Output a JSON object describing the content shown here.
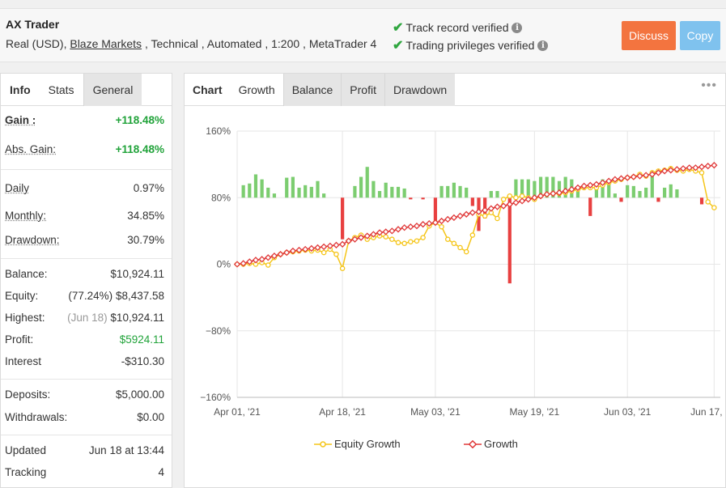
{
  "header": {
    "title": "AX Trader",
    "account_type": "Real (USD),",
    "broker": "Blaze Markets",
    "details": " , Technical , Automated , 1:200 , MetaTrader 4",
    "verify1": "Track record verified",
    "verify2": "Trading privileges verified",
    "discuss_label": "Discuss",
    "copy_label": "Copy",
    "colors": {
      "discuss": "#f3743f",
      "copy": "#7fc2ee",
      "check": "#2fa63f"
    }
  },
  "left_tabs": [
    "Info",
    "Stats",
    "General"
  ],
  "stats": {
    "gain_label": "Gain :",
    "gain_value": "+118.48%",
    "abs_gain_label": "Abs. Gain:",
    "abs_gain_value": "+118.48%",
    "daily_label": "Daily",
    "daily_value": "0.97%",
    "monthly_label": "Monthly:",
    "monthly_value": "34.85%",
    "drawdown_label": "Drawdown:",
    "drawdown_value": "30.79%",
    "balance_label": "Balance:",
    "balance_value": "$10,924.11",
    "equity_label": "Equity:",
    "equity_pct": "(77.24%)",
    "equity_value": "$8,437.58",
    "highest_label": "Highest:",
    "highest_date": "(Jun 18)",
    "highest_value": "$10,924.11",
    "profit_label": "Profit:",
    "profit_value": "$5924.11",
    "interest_label": "Interest",
    "interest_value": "-$310.30",
    "deposits_label": "Deposits:",
    "deposits_value": "$5,000.00",
    "withdrawals_label": "Withdrawals:",
    "withdrawals_value": "$0.00",
    "updated_label": "Updated",
    "updated_value": "Jun 18 at 13:44",
    "tracking_label": "Tracking",
    "tracking_value": "4"
  },
  "right_tabs": [
    "Chart",
    "Growth",
    "Balance",
    "Profit",
    "Drawdown"
  ],
  "more_icon": "ellipsis-icon",
  "chart_data": {
    "type": "line",
    "ylim": [
      -160,
      160
    ],
    "yticks": [
      "160%",
      "80%",
      "0%",
      "−80%",
      "−160%"
    ],
    "ytick_values": [
      160,
      80,
      0,
      -80,
      -160
    ],
    "xticks": [
      "Apr 01, '21",
      "Apr 18, '21",
      "May 03, '21",
      "May 19, '21",
      "Jun 03, '21",
      "Jun 17, '21"
    ],
    "xtick_days": [
      0,
      17,
      32,
      48,
      63,
      77
    ],
    "x_max_days": 78,
    "grid": true,
    "legend_position": "bottom",
    "series": [
      {
        "name": "Equity Growth",
        "color": "#f5c518",
        "points": [
          [
            0,
            0
          ],
          [
            1,
            0
          ],
          [
            2,
            1
          ],
          [
            3,
            0
          ],
          [
            4,
            2
          ],
          [
            5,
            -1
          ],
          [
            6,
            8
          ],
          [
            7,
            12
          ],
          [
            8,
            14
          ],
          [
            9,
            15
          ],
          [
            10,
            16
          ],
          [
            11,
            17
          ],
          [
            12,
            16
          ],
          [
            13,
            17
          ],
          [
            14,
            14
          ],
          [
            15,
            18
          ],
          [
            16,
            12
          ],
          [
            17,
            -5
          ],
          [
            18,
            28
          ],
          [
            19,
            32
          ],
          [
            20,
            35
          ],
          [
            21,
            30
          ],
          [
            22,
            32
          ],
          [
            23,
            34
          ],
          [
            24,
            33
          ],
          [
            25,
            30
          ],
          [
            26,
            26
          ],
          [
            27,
            25
          ],
          [
            28,
            27
          ],
          [
            29,
            28
          ],
          [
            30,
            32
          ],
          [
            31,
            46
          ],
          [
            32,
            50
          ],
          [
            33,
            45
          ],
          [
            34,
            30
          ],
          [
            35,
            25
          ],
          [
            36,
            20
          ],
          [
            37,
            15
          ],
          [
            38,
            35
          ],
          [
            39,
            60
          ],
          [
            40,
            58
          ],
          [
            41,
            62
          ],
          [
            42,
            55
          ],
          [
            43,
            78
          ],
          [
            44,
            82
          ],
          [
            45,
            80
          ],
          [
            46,
            82
          ],
          [
            47,
            80
          ],
          [
            48,
            78
          ],
          [
            49,
            82
          ],
          [
            50,
            84
          ],
          [
            51,
            85
          ],
          [
            52,
            85
          ],
          [
            53,
            86
          ],
          [
            54,
            88
          ],
          [
            55,
            90
          ],
          [
            56,
            92
          ],
          [
            57,
            92
          ],
          [
            58,
            92
          ],
          [
            59,
            95
          ],
          [
            60,
            98
          ],
          [
            61,
            100
          ],
          [
            62,
            102
          ],
          [
            63,
            104
          ],
          [
            64,
            105
          ],
          [
            65,
            108
          ],
          [
            66,
            106
          ],
          [
            67,
            110
          ],
          [
            68,
            112
          ],
          [
            69,
            113
          ],
          [
            70,
            115
          ],
          [
            71,
            113
          ],
          [
            72,
            112
          ],
          [
            73,
            114
          ],
          [
            74,
            112
          ],
          [
            75,
            110
          ],
          [
            76,
            75
          ],
          [
            77,
            68
          ]
        ]
      },
      {
        "name": "Growth",
        "color": "#e03a3a",
        "points": [
          [
            0,
            0
          ],
          [
            1,
            1
          ],
          [
            2,
            3
          ],
          [
            3,
            5
          ],
          [
            4,
            6
          ],
          [
            5,
            8
          ],
          [
            6,
            10
          ],
          [
            7,
            12
          ],
          [
            8,
            14
          ],
          [
            9,
            16
          ],
          [
            10,
            17
          ],
          [
            11,
            18
          ],
          [
            12,
            19
          ],
          [
            13,
            20
          ],
          [
            14,
            21
          ],
          [
            15,
            22
          ],
          [
            16,
            23
          ],
          [
            17,
            24
          ],
          [
            18,
            28
          ],
          [
            19,
            30
          ],
          [
            20,
            32
          ],
          [
            21,
            34
          ],
          [
            22,
            36
          ],
          [
            23,
            38
          ],
          [
            24,
            39
          ],
          [
            25,
            40
          ],
          [
            26,
            42
          ],
          [
            27,
            44
          ],
          [
            28,
            45
          ],
          [
            29,
            46
          ],
          [
            30,
            48
          ],
          [
            31,
            49
          ],
          [
            32,
            50
          ],
          [
            33,
            52
          ],
          [
            34,
            54
          ],
          [
            35,
            56
          ],
          [
            36,
            58
          ],
          [
            37,
            60
          ],
          [
            38,
            62
          ],
          [
            39,
            63
          ],
          [
            40,
            65
          ],
          [
            41,
            67
          ],
          [
            42,
            69
          ],
          [
            43,
            70
          ],
          [
            44,
            72
          ],
          [
            45,
            74
          ],
          [
            46,
            76
          ],
          [
            47,
            78
          ],
          [
            48,
            80
          ],
          [
            49,
            82
          ],
          [
            50,
            84
          ],
          [
            51,
            85
          ],
          [
            52,
            86
          ],
          [
            53,
            88
          ],
          [
            54,
            90
          ],
          [
            55,
            92
          ],
          [
            56,
            94
          ],
          [
            57,
            95
          ],
          [
            58,
            96
          ],
          [
            59,
            98
          ],
          [
            60,
            100
          ],
          [
            61,
            102
          ],
          [
            62,
            103
          ],
          [
            63,
            104
          ],
          [
            64,
            105
          ],
          [
            65,
            106
          ],
          [
            66,
            107
          ],
          [
            67,
            108
          ],
          [
            68,
            110
          ],
          [
            69,
            112
          ],
          [
            70,
            113
          ],
          [
            71,
            114
          ],
          [
            72,
            115
          ],
          [
            73,
            116
          ],
          [
            74,
            116
          ],
          [
            75,
            117
          ],
          [
            76,
            118
          ],
          [
            77,
            119
          ]
        ]
      }
    ],
    "bars": {
      "color_pos": "#7ccd70",
      "color_neg": "#e84040",
      "points": [
        [
          1,
          15
        ],
        [
          2,
          17
        ],
        [
          3,
          28
        ],
        [
          4,
          22
        ],
        [
          5,
          12
        ],
        [
          6,
          5
        ],
        [
          8,
          24
        ],
        [
          9,
          25
        ],
        [
          10,
          12
        ],
        [
          11,
          15
        ],
        [
          12,
          13
        ],
        [
          13,
          20
        ],
        [
          14,
          5
        ],
        [
          17,
          -50
        ],
        [
          19,
          14
        ],
        [
          20,
          25
        ],
        [
          21,
          37
        ],
        [
          22,
          20
        ],
        [
          23,
          8
        ],
        [
          24,
          18
        ],
        [
          25,
          13
        ],
        [
          26,
          13
        ],
        [
          27,
          11
        ],
        [
          28,
          -2
        ],
        [
          30,
          -2
        ],
        [
          32,
          -28
        ],
        [
          33,
          14
        ],
        [
          34,
          14
        ],
        [
          35,
          18
        ],
        [
          36,
          14
        ],
        [
          37,
          12
        ],
        [
          38,
          -10
        ],
        [
          39,
          -40
        ],
        [
          40,
          -25
        ],
        [
          41,
          8
        ],
        [
          42,
          8
        ],
        [
          44,
          -103
        ],
        [
          45,
          22
        ],
        [
          46,
          22
        ],
        [
          47,
          22
        ],
        [
          48,
          20
        ],
        [
          49,
          25
        ],
        [
          50,
          25
        ],
        [
          51,
          25
        ],
        [
          52,
          20
        ],
        [
          53,
          25
        ],
        [
          54,
          22
        ],
        [
          55,
          8
        ],
        [
          57,
          -22
        ],
        [
          58,
          18
        ],
        [
          59,
          22
        ],
        [
          60,
          20
        ],
        [
          61,
          5
        ],
        [
          62,
          -5
        ],
        [
          63,
          15
        ],
        [
          64,
          14
        ],
        [
          65,
          8
        ],
        [
          66,
          12
        ],
        [
          67,
          32
        ],
        [
          68,
          -5
        ],
        [
          69,
          12
        ],
        [
          70,
          16
        ],
        [
          71,
          10
        ],
        [
          75,
          -8
        ]
      ]
    }
  }
}
